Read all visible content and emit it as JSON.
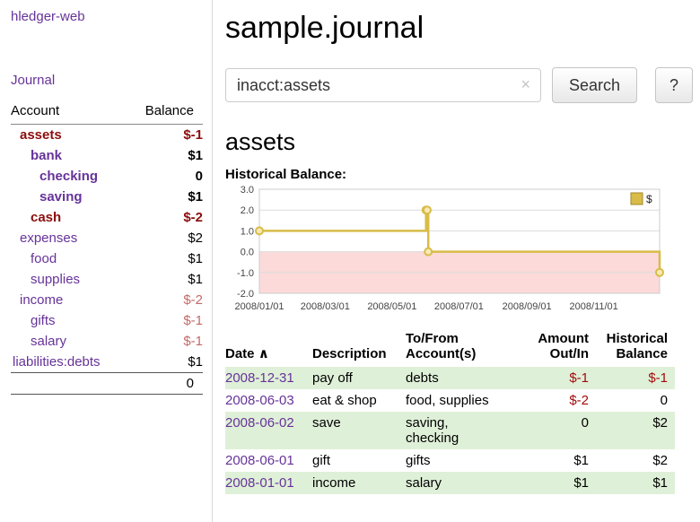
{
  "colors": {
    "link_purple": "#663399",
    "negative_dark_red": "#8b0d0d",
    "negative_muted_pink": "#c46a6a",
    "table_negative_red": "#a40b0b",
    "row_shade_green": "#dff0d8",
    "chart_line_gold": "#d8bc47",
    "chart_negative_region_pink": "#fcdada"
  },
  "sidebar": {
    "app_title": "hledger-web",
    "journal_link": "Journal",
    "accounts": {
      "headers": {
        "account": "Account",
        "balance": "Balance"
      },
      "rows": [
        {
          "account": "assets",
          "depth": 1,
          "bold": true,
          "name_color": "negative",
          "balance": "$-1",
          "balance_color": "negative"
        },
        {
          "account": "bank",
          "depth": 2,
          "bold": true,
          "name_color": "link",
          "balance": "$1",
          "balance_color": "plain"
        },
        {
          "account": "checking",
          "depth": 3,
          "bold": true,
          "name_color": "link",
          "balance": "0",
          "balance_color": "plain"
        },
        {
          "account": "saving",
          "depth": 3,
          "bold": true,
          "name_color": "link",
          "balance": "$1",
          "balance_color": "plain"
        },
        {
          "account": "cash",
          "depth": 2,
          "bold": true,
          "name_color": "negative",
          "balance": "$-2",
          "balance_color": "negative"
        },
        {
          "account": "expenses",
          "depth": 1,
          "bold": false,
          "name_color": "link",
          "balance": "$2",
          "balance_color": "plain"
        },
        {
          "account": "food",
          "depth": 2,
          "bold": false,
          "name_color": "link",
          "balance": "$1",
          "balance_color": "plain"
        },
        {
          "account": "supplies",
          "depth": 2,
          "bold": false,
          "name_color": "link",
          "balance": "$1",
          "balance_color": "plain"
        },
        {
          "account": "income",
          "depth": 1,
          "bold": false,
          "name_color": "link",
          "balance": "$-2",
          "balance_color": "pink"
        },
        {
          "account": "gifts",
          "depth": 2,
          "bold": false,
          "name_color": "link",
          "balance": "$-1",
          "balance_color": "pink"
        },
        {
          "account": "salary",
          "depth": 2,
          "bold": false,
          "name_color": "link",
          "balance": "$-1",
          "balance_color": "pink"
        },
        {
          "account": "liabilities:debts",
          "depth": 0,
          "bold": false,
          "name_color": "link",
          "balance": "$1",
          "balance_color": "plain"
        }
      ],
      "total": "0"
    }
  },
  "main": {
    "title": "sample.journal",
    "search": {
      "value": "inacct:assets",
      "clear_icon": "×",
      "button": "Search",
      "help_button": "?"
    },
    "heading": "assets",
    "chart_label": "Historical Balance:"
  },
  "chart_data": {
    "type": "line",
    "subtype": "step",
    "title": "Historical Balance",
    "series": [
      {
        "name": "$",
        "points": [
          [
            "2008-01-01",
            1
          ],
          [
            "2008-06-01",
            2
          ],
          [
            "2008-06-02",
            2
          ],
          [
            "2008-06-03",
            0
          ],
          [
            "2008-12-31",
            -1
          ]
        ]
      }
    ],
    "ylim": [
      -2,
      3
    ],
    "y_ticks": [
      3.0,
      2.0,
      1.0,
      0.0,
      -1.0,
      -2.0
    ],
    "x_ticks": [
      {
        "date": "2008-01-01",
        "label": "2008/01/01"
      },
      {
        "date": "2008-03-01",
        "label": "2008/03/01"
      },
      {
        "date": "2008-05-01",
        "label": "2008/05/01"
      },
      {
        "date": "2008-07-01",
        "label": "2008/07/01"
      },
      {
        "date": "2008-09-01",
        "label": "2008/09/01"
      },
      {
        "date": "2008-11-01",
        "label": "2008/11/01"
      }
    ],
    "legend": {
      "label": "$",
      "position": "top-right"
    },
    "grid": true,
    "line_color": "#d8bc47",
    "negative_region_color": "#fcdada"
  },
  "transactions": {
    "headers": {
      "date": "Date",
      "description": "Description",
      "accounts": "To/From Account(s)",
      "amount": "Amount Out/In",
      "balance": "Historical Balance"
    },
    "sort_icon": "∧",
    "rows": [
      {
        "date": "2008-12-31",
        "description": "pay off",
        "accounts": "debts",
        "amount": "$-1",
        "amount_negative": true,
        "balance": "$-1",
        "balance_negative": true,
        "shaded": true
      },
      {
        "date": "2008-06-03",
        "description": "eat & shop",
        "accounts": "food, supplies",
        "amount": "$-2",
        "amount_negative": true,
        "balance": "0",
        "balance_negative": false,
        "shaded": false
      },
      {
        "date": "2008-06-02",
        "description": "save",
        "accounts": "saving,\nchecking",
        "amount": "0",
        "amount_negative": false,
        "balance": "$2",
        "balance_negative": false,
        "shaded": true
      },
      {
        "date": "2008-06-01",
        "description": "gift",
        "accounts": "gifts",
        "amount": "$1",
        "amount_negative": false,
        "balance": "$2",
        "balance_negative": false,
        "shaded": false
      },
      {
        "date": "2008-01-01",
        "description": "income",
        "accounts": "salary",
        "amount": "$1",
        "amount_negative": false,
        "balance": "$1",
        "balance_negative": false,
        "shaded": true
      }
    ]
  }
}
